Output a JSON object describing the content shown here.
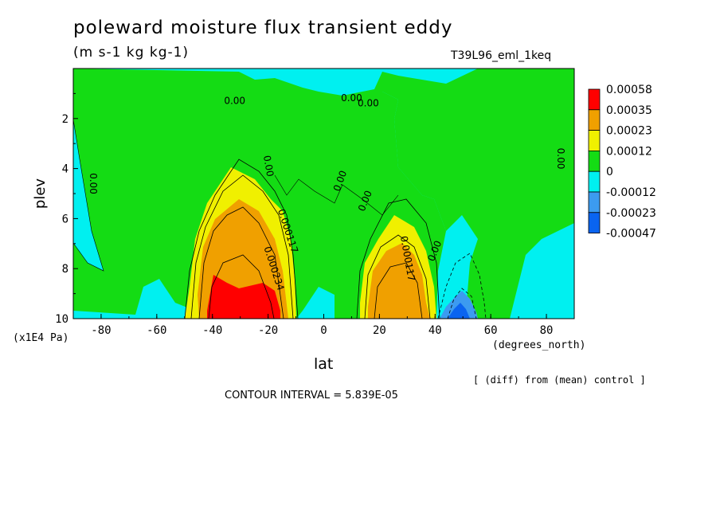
{
  "title": "poleward moisture flux transient eddy",
  "units": "(m s-1 kg kg-1)",
  "dataset": "T39L96_eml_1keq",
  "y_unit": "(x1E4 Pa)",
  "x_unit": "(degrees_north)",
  "diff_note": "[ (diff) from (mean) control ]",
  "contour_interval": "CONTOUR INTERVAL = 5.839E-05",
  "colors": {
    "c0": "#0a64f0",
    "c1": "#3c9bf0",
    "c2": "#00f0f0",
    "c3": "#14dc14",
    "c4": "#f0f000",
    "c5": "#f0a000",
    "c6": "#ff0000"
  },
  "chart_data": {
    "type": "heatmap",
    "xlabel": "lat",
    "ylabel": "plev",
    "xlim": [
      -90,
      90
    ],
    "ylim": [
      10,
      0
    ],
    "x_ticks": [
      -80,
      -60,
      -40,
      -20,
      0,
      20,
      40,
      60,
      80
    ],
    "y_ticks": [
      2,
      4,
      6,
      8,
      10
    ],
    "colorbar": {
      "levels": [
        "0.00058",
        "0.00035",
        "0.00023",
        "0.00012",
        "0",
        "-0.00012",
        "-0.00023",
        "-0.00047"
      ],
      "colors": [
        "#ff0000",
        "#f0a000",
        "#f0f000",
        "#14dc14",
        "#00f0f0",
        "#3c9bf0",
        "#0a64f0"
      ]
    },
    "contour_labels": [
      {
        "text": "0.00",
        "lat": -83,
        "plev": 4.6,
        "angle": 90
      },
      {
        "text": "0.00",
        "lat": -32,
        "plev": 1.3,
        "angle": 0
      },
      {
        "text": "0.00",
        "lat": -20,
        "plev": 3.9,
        "angle": 80
      },
      {
        "text": "0.000117",
        "lat": -13,
        "plev": 6.5,
        "angle": 72
      },
      {
        "text": "0.000234",
        "lat": -18,
        "plev": 8.0,
        "angle": 72
      },
      {
        "text": "0.00",
        "lat": 6,
        "plev": 4.5,
        "angle": -70
      },
      {
        "text": "0.00",
        "lat": 10,
        "plev": 1.2,
        "angle": 0
      },
      {
        "text": "0.00",
        "lat": 16,
        "plev": 1.4,
        "angle": 0
      },
      {
        "text": "0.00",
        "lat": 15,
        "plev": 5.3,
        "angle": -68
      },
      {
        "text": "0.000117",
        "lat": 30,
        "plev": 7.6,
        "angle": 80
      },
      {
        "text": "0.00",
        "lat": 40,
        "plev": 7.3,
        "angle": -68
      },
      {
        "text": "0.00",
        "lat": 85,
        "plev": 3.6,
        "angle": 90
      }
    ]
  }
}
